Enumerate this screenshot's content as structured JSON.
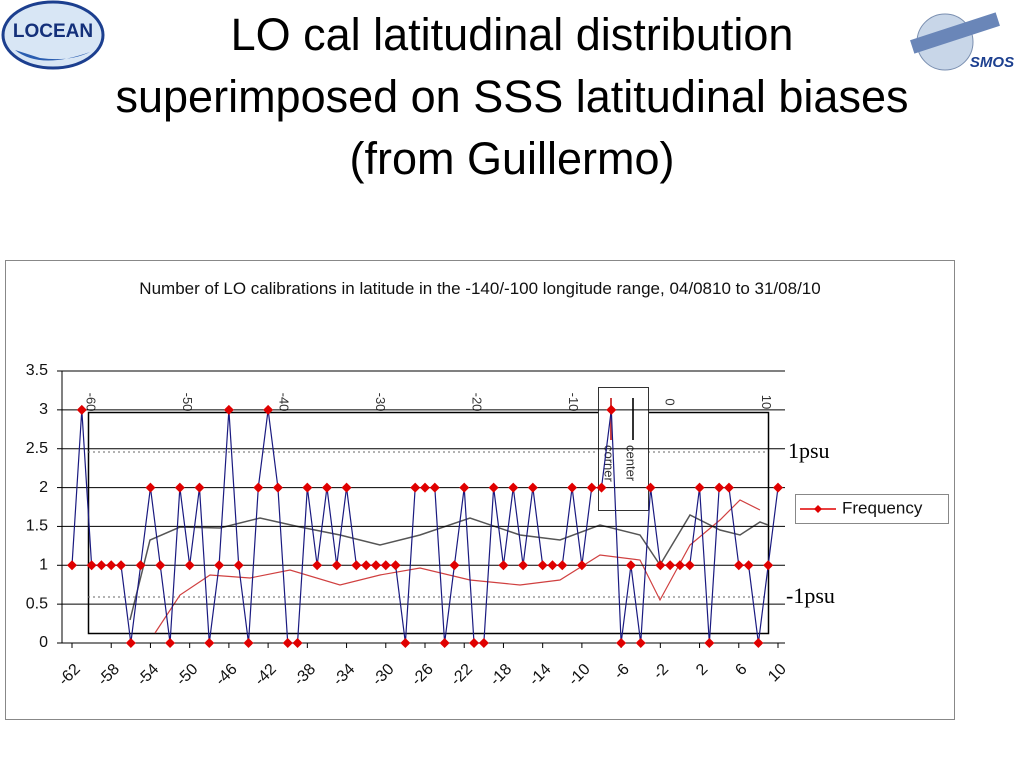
{
  "slide": {
    "title": "LO cal latitudinal distribution superimposed on SSS latitudinal biases (from Guillermo)",
    "logo_left": "LOCEAN",
    "logo_right": "SMOS"
  },
  "chart_data": {
    "type": "line",
    "title": "Number of LO calibrations in latitude in the -140/-100 longitude range, 04/0810 to 31/08/10",
    "x": [
      -62,
      -61,
      -60,
      -59,
      -58,
      -57,
      -56,
      -55,
      -54,
      -53,
      -52,
      -51,
      -50,
      -49,
      -48,
      -47,
      -46,
      -45,
      -44,
      -43,
      -42,
      -41,
      -40,
      -39,
      -38,
      -37,
      -36,
      -35,
      -34,
      -33,
      -32,
      -31,
      -30,
      -29,
      -28,
      -27,
      -26,
      -25,
      -24,
      -23,
      -22,
      -21,
      -20,
      -19,
      -18,
      -17,
      -16,
      -15,
      -14,
      -13,
      -12,
      -11,
      -10,
      -9,
      -8,
      -7,
      -6,
      -5,
      -4,
      -3,
      -2,
      -1,
      0,
      1,
      2,
      3,
      4,
      5,
      6,
      7,
      8,
      9,
      10
    ],
    "xlim": [
      -62,
      10
    ],
    "xticks": [
      -62,
      -58,
      -54,
      -50,
      -46,
      -42,
      -38,
      -34,
      -30,
      -26,
      -22,
      -18,
      -14,
      -10,
      -6,
      -2,
      2,
      6,
      10
    ],
    "ylim": [
      0,
      3.5
    ],
    "yticks": [
      0,
      0.5,
      1,
      1.5,
      2,
      2.5,
      3,
      3.5
    ],
    "grid": true,
    "legend": "right",
    "series": [
      {
        "name": "Frequency",
        "color": "#1a1a80",
        "marker_color": "#e00000",
        "values": [
          1,
          3,
          1,
          1,
          1,
          1,
          0,
          1,
          2,
          1,
          0,
          2,
          1,
          2,
          0,
          1,
          3,
          1,
          0,
          2,
          3,
          2,
          0,
          0,
          2,
          1,
          2,
          1,
          2,
          1,
          1,
          1,
          1,
          1,
          0,
          2,
          2,
          2,
          0,
          1,
          2,
          0,
          0,
          2,
          1,
          2,
          1,
          2,
          1,
          1,
          1,
          2,
          1,
          2,
          2,
          3,
          0,
          1,
          0,
          2,
          1,
          1,
          1,
          1,
          2,
          0,
          2,
          2,
          1,
          1,
          0,
          1,
          2
        ]
      }
    ],
    "annotations": [
      "1psu",
      "-1psu"
    ],
    "background_labels": [
      "-60",
      "-50",
      "-40",
      "-30",
      "-20",
      "-10",
      "0",
      "10"
    ],
    "background_legend": [
      "center",
      "corner"
    ]
  }
}
